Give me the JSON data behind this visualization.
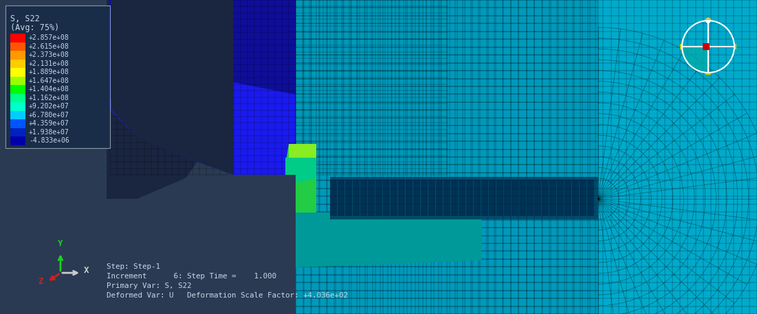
{
  "bg_color": "#2a3a52",
  "legend_box_color": "#1e3050",
  "legend_border_color": "#8899aa",
  "title_text": "S, S22",
  "subtitle_text": "(Avg: 75%)",
  "colorbar_labels": [
    "+2.857e+08",
    "+2.615e+08",
    "+2.373e+08",
    "+2.131e+08",
    "+1.889e+08",
    "+1.647e+08",
    "+1.404e+08",
    "+1.162e+08",
    "+9.202e+07",
    "+6.780e+07",
    "+4.359e+07",
    "+1.938e+07",
    "-4.833e+06"
  ],
  "colorbar_colors": [
    "#ff0000",
    "#ff5500",
    "#ff9900",
    "#ffcc00",
    "#ffff00",
    "#99ff00",
    "#00ff00",
    "#00ff88",
    "#00ffcc",
    "#00ccff",
    "#0055ff",
    "#0022bb",
    "#0000aa"
  ],
  "info_lines": [
    "Step: Step-1",
    "Increment      6: Step Time =    1.000",
    "Primary Var: S, S22",
    "Deformed Var: U   Deformation Scale Factor: +4.036e+02"
  ],
  "axis_Y_color": "#22cc22",
  "axis_Z_color": "#cc2222",
  "axis_X_color": "#cccccc",
  "text_color": "#c8d8e8",
  "legend_text_color": "#c8d8e8",
  "compass_white": "#ffffff",
  "compass_red": "#cc0000",
  "compass_teal": "#00aaaa",
  "compass_yellow": "#cccc00",
  "mesh_line_color": "#000000"
}
